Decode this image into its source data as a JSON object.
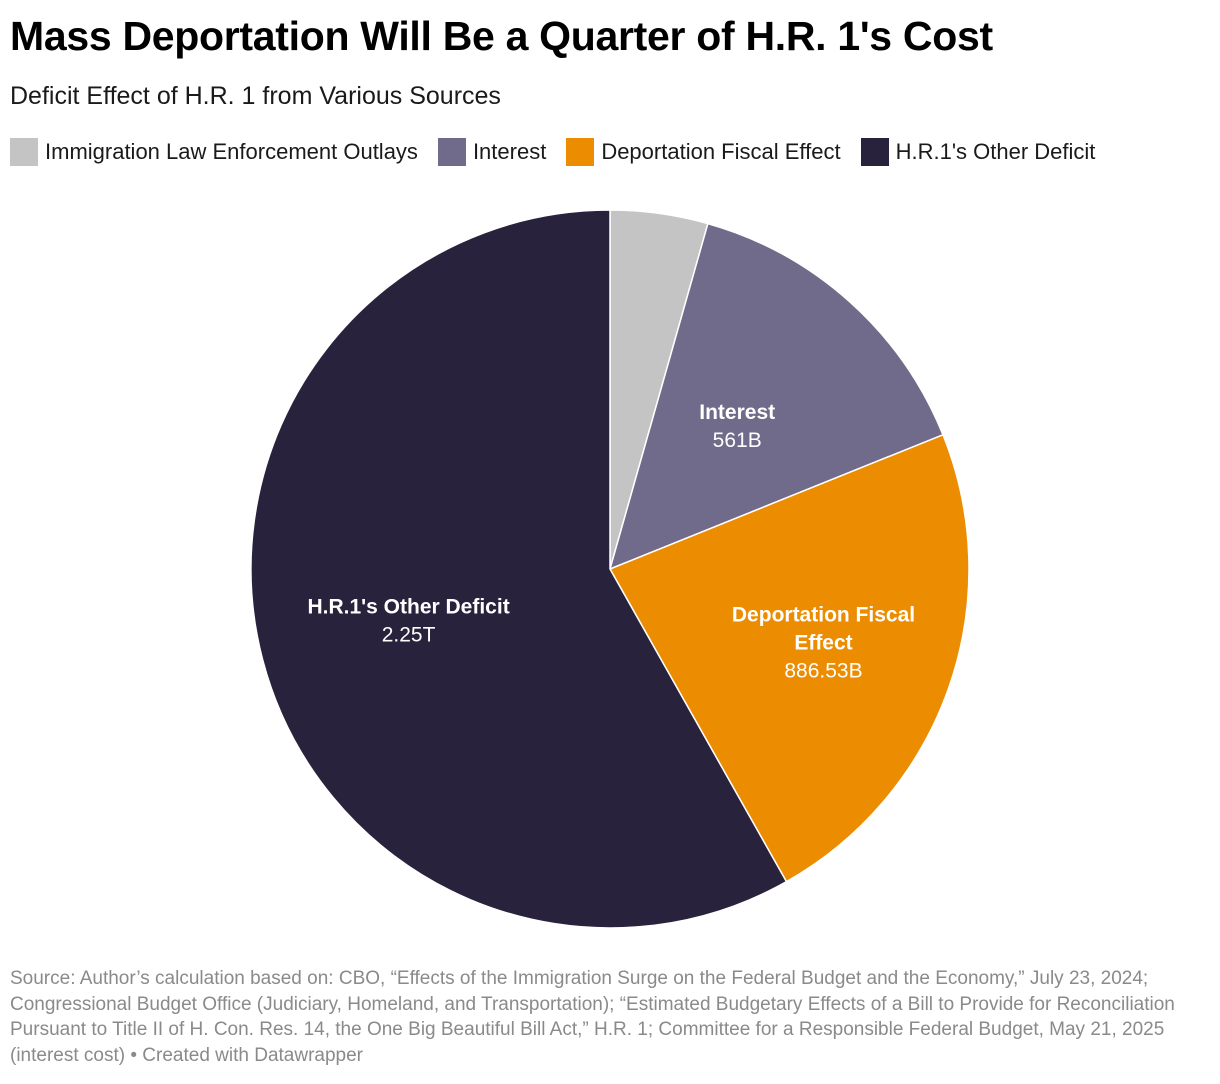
{
  "title": "Mass Deportation Will Be a Quarter of H.R. 1's Cost",
  "subtitle": "Deficit Effect of H.R. 1 from Various Sources",
  "source": "Source: Author’s calculation based on: CBO, “Effects of the Immigration Surge on the Federal Budget and the Economy,” July 23, 2024; Congressional Budget Office (Judiciary, Homeland, and Transportation); “Estimated Budgetary Effects of a Bill to Provide for Reconciliation Pursuant to Title II of H. Con. Res. 14, the One Big Beautiful Bill Act,” H.R. 1; Committee for a Responsible Federal Budget, May 21, 2025 (interest cost) • Created with Datawrapper",
  "chart_data": {
    "type": "pie",
    "title": "Mass Deportation Will Be a Quarter of H.R. 1's Cost",
    "subtitle": "Deficit Effect of H.R. 1 from Various Sources",
    "legend_position": "top",
    "slices": [
      {
        "name": "Immigration Law Enforcement Outlays",
        "value": 170000000000,
        "label_lines": [],
        "value_label": "",
        "color": "#c4c4c4"
      },
      {
        "name": "Interest",
        "value": 561000000000,
        "label_lines": [
          "Interest"
        ],
        "value_label": "561B",
        "color": "#706a8b"
      },
      {
        "name": "Deportation Fiscal Effect",
        "value": 886530000000,
        "label_lines": [
          "Deportation Fiscal",
          "Effect"
        ],
        "value_label": "886.53B",
        "color": "#ec8c00"
      },
      {
        "name": "H.R.1's Other Deficit",
        "value": 2250000000000,
        "label_lines": [
          "H.R.1's Other Deficit"
        ],
        "value_label": "2.25T",
        "color": "#28223c"
      }
    ]
  }
}
